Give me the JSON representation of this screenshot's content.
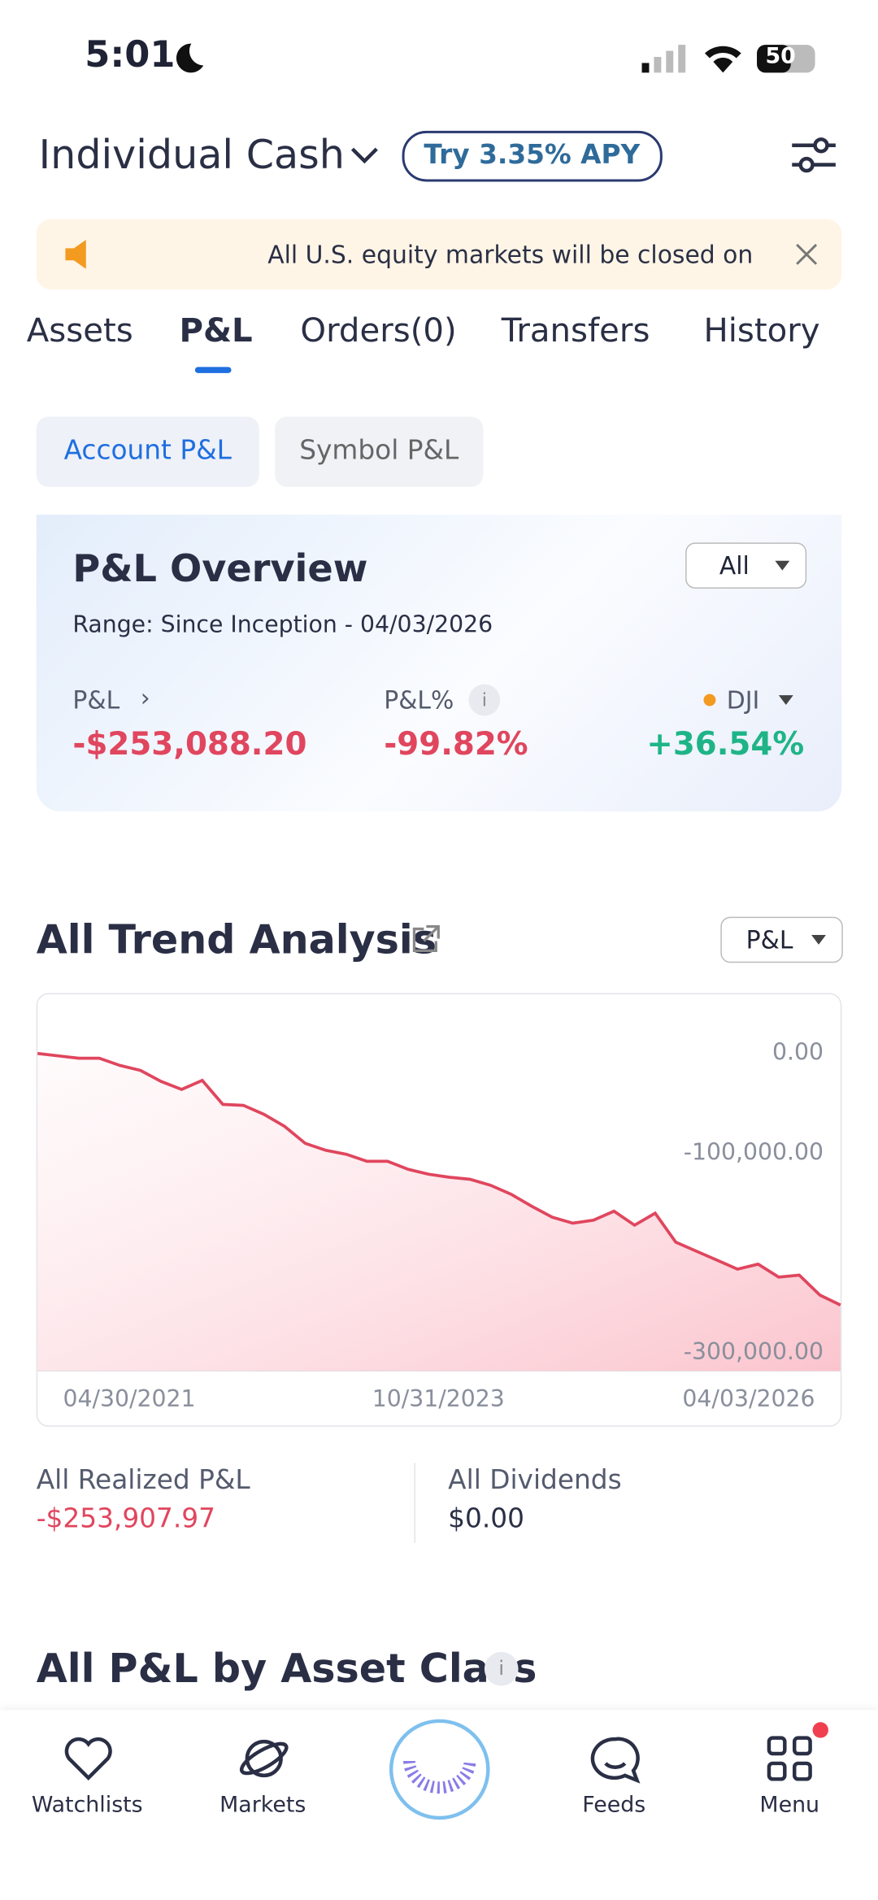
{
  "status_bar": {
    "time": "5:01",
    "battery": "50"
  },
  "header": {
    "account": "Individual Cash",
    "promo": "Try 3.35% APY"
  },
  "banner": {
    "text": "All U.S. equity markets will be closed on"
  },
  "tabs": [
    "Assets",
    "P&L",
    "Orders(0)",
    "Transfers",
    "History"
  ],
  "subtabs": [
    "Account P&L",
    "Symbol P&L"
  ],
  "overview": {
    "title": "P&L Overview",
    "filter": "All",
    "range": "Range: Since Inception - 04/03/2026",
    "metrics": [
      {
        "label": "P&L",
        "value": "-$253,088.20"
      },
      {
        "label": "P&L%",
        "value": "-99.82%"
      },
      {
        "label": "DJI",
        "value": "+36.54%"
      }
    ]
  },
  "trend": {
    "title": "All Trend Analysis",
    "selector": "P&L",
    "chart": {
      "type": "area",
      "color": "#e0465e",
      "values": [
        0,
        -2400,
        -4800,
        -4800,
        -12000,
        -17000,
        -28000,
        -36000,
        -27000,
        -51000,
        -52000,
        -61000,
        -73000,
        -90000,
        -97000,
        -101000,
        -108000,
        -108000,
        -116000,
        -121000,
        -124000,
        -126000,
        -132000,
        -141000,
        -153000,
        -164000,
        -170000,
        -167000,
        -158000,
        -172000,
        -160000,
        -189000,
        -198000,
        -207000,
        -216000,
        -211000,
        -224000,
        -222000,
        -242000,
        -252000
      ],
      "ylim": [
        -318000,
        58000
      ],
      "yticks": [
        {
          "value": 0,
          "label": "0.00"
        },
        {
          "value": -100000,
          "label": "-100,000.00"
        },
        {
          "value": -300000,
          "label": "-300,000.00"
        }
      ],
      "x_labels": [
        "04/30/2021",
        "10/31/2023",
        "04/03/2026"
      ]
    }
  },
  "summary": [
    {
      "label": "All Realized P&L",
      "value": "-$253,907.97"
    },
    {
      "label": "All Dividends",
      "value": "$0.00"
    }
  ],
  "section_title": "All P&L by Asset Class",
  "nav": [
    "Watchlists",
    "Markets",
    "Feeds",
    "Menu"
  ]
}
